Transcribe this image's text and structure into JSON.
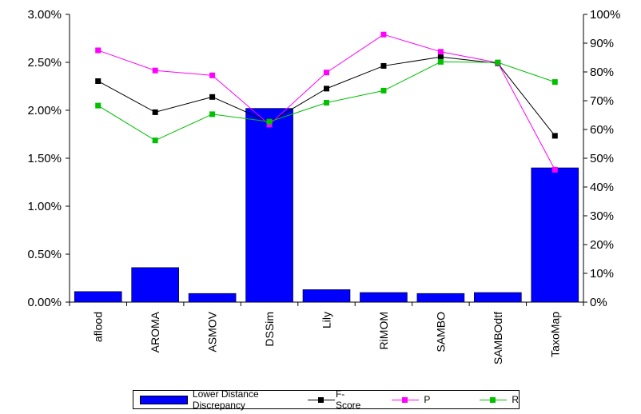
{
  "chart_data": {
    "type": "bar+line",
    "categories": [
      "aflood",
      "AROMA",
      "ASMOV",
      "DSSim",
      "Lily",
      "RiMOM",
      "SAMBO",
      "SAMBOdtf",
      "TaxoMap"
    ],
    "bar_series": {
      "name": "Lower Distance Discrepancy",
      "axis": "left",
      "color": "#0000ff",
      "values": [
        0.11,
        0.36,
        0.09,
        2.02,
        0.13,
        0.1,
        0.09,
        0.1,
        1.4
      ]
    },
    "line_series": [
      {
        "name": "F-Score",
        "axis": "right",
        "color": "#000000",
        "values": [
          76.8,
          66.0,
          71.3,
          62.5,
          74.2,
          82.1,
          85.2,
          83.0,
          57.8
        ]
      },
      {
        "name": "P",
        "axis": "right",
        "color": "#ff00ff",
        "values": [
          87.5,
          80.5,
          78.8,
          61.7,
          79.8,
          93.0,
          87.0,
          83.2,
          46.0
        ]
      },
      {
        "name": "R",
        "axis": "right",
        "color": "#00c000",
        "values": [
          68.3,
          56.2,
          65.3,
          62.7,
          69.3,
          73.5,
          83.5,
          83.3,
          76.5
        ]
      }
    ],
    "left_axis": {
      "min": 0,
      "max": 3.0,
      "step": 0.5,
      "format": "percent2"
    },
    "right_axis": {
      "min": 0,
      "max": 100,
      "step": 10,
      "format": "percent0"
    },
    "left_ticks": [
      "0.00%",
      "0.50%",
      "1.00%",
      "1.50%",
      "2.00%",
      "2.50%",
      "3.00%"
    ],
    "right_ticks": [
      "0%",
      "10%",
      "20%",
      "30%",
      "40%",
      "50%",
      "60%",
      "70%",
      "80%",
      "90%",
      "100%"
    ],
    "legend_position": "bottom",
    "grid": false
  }
}
